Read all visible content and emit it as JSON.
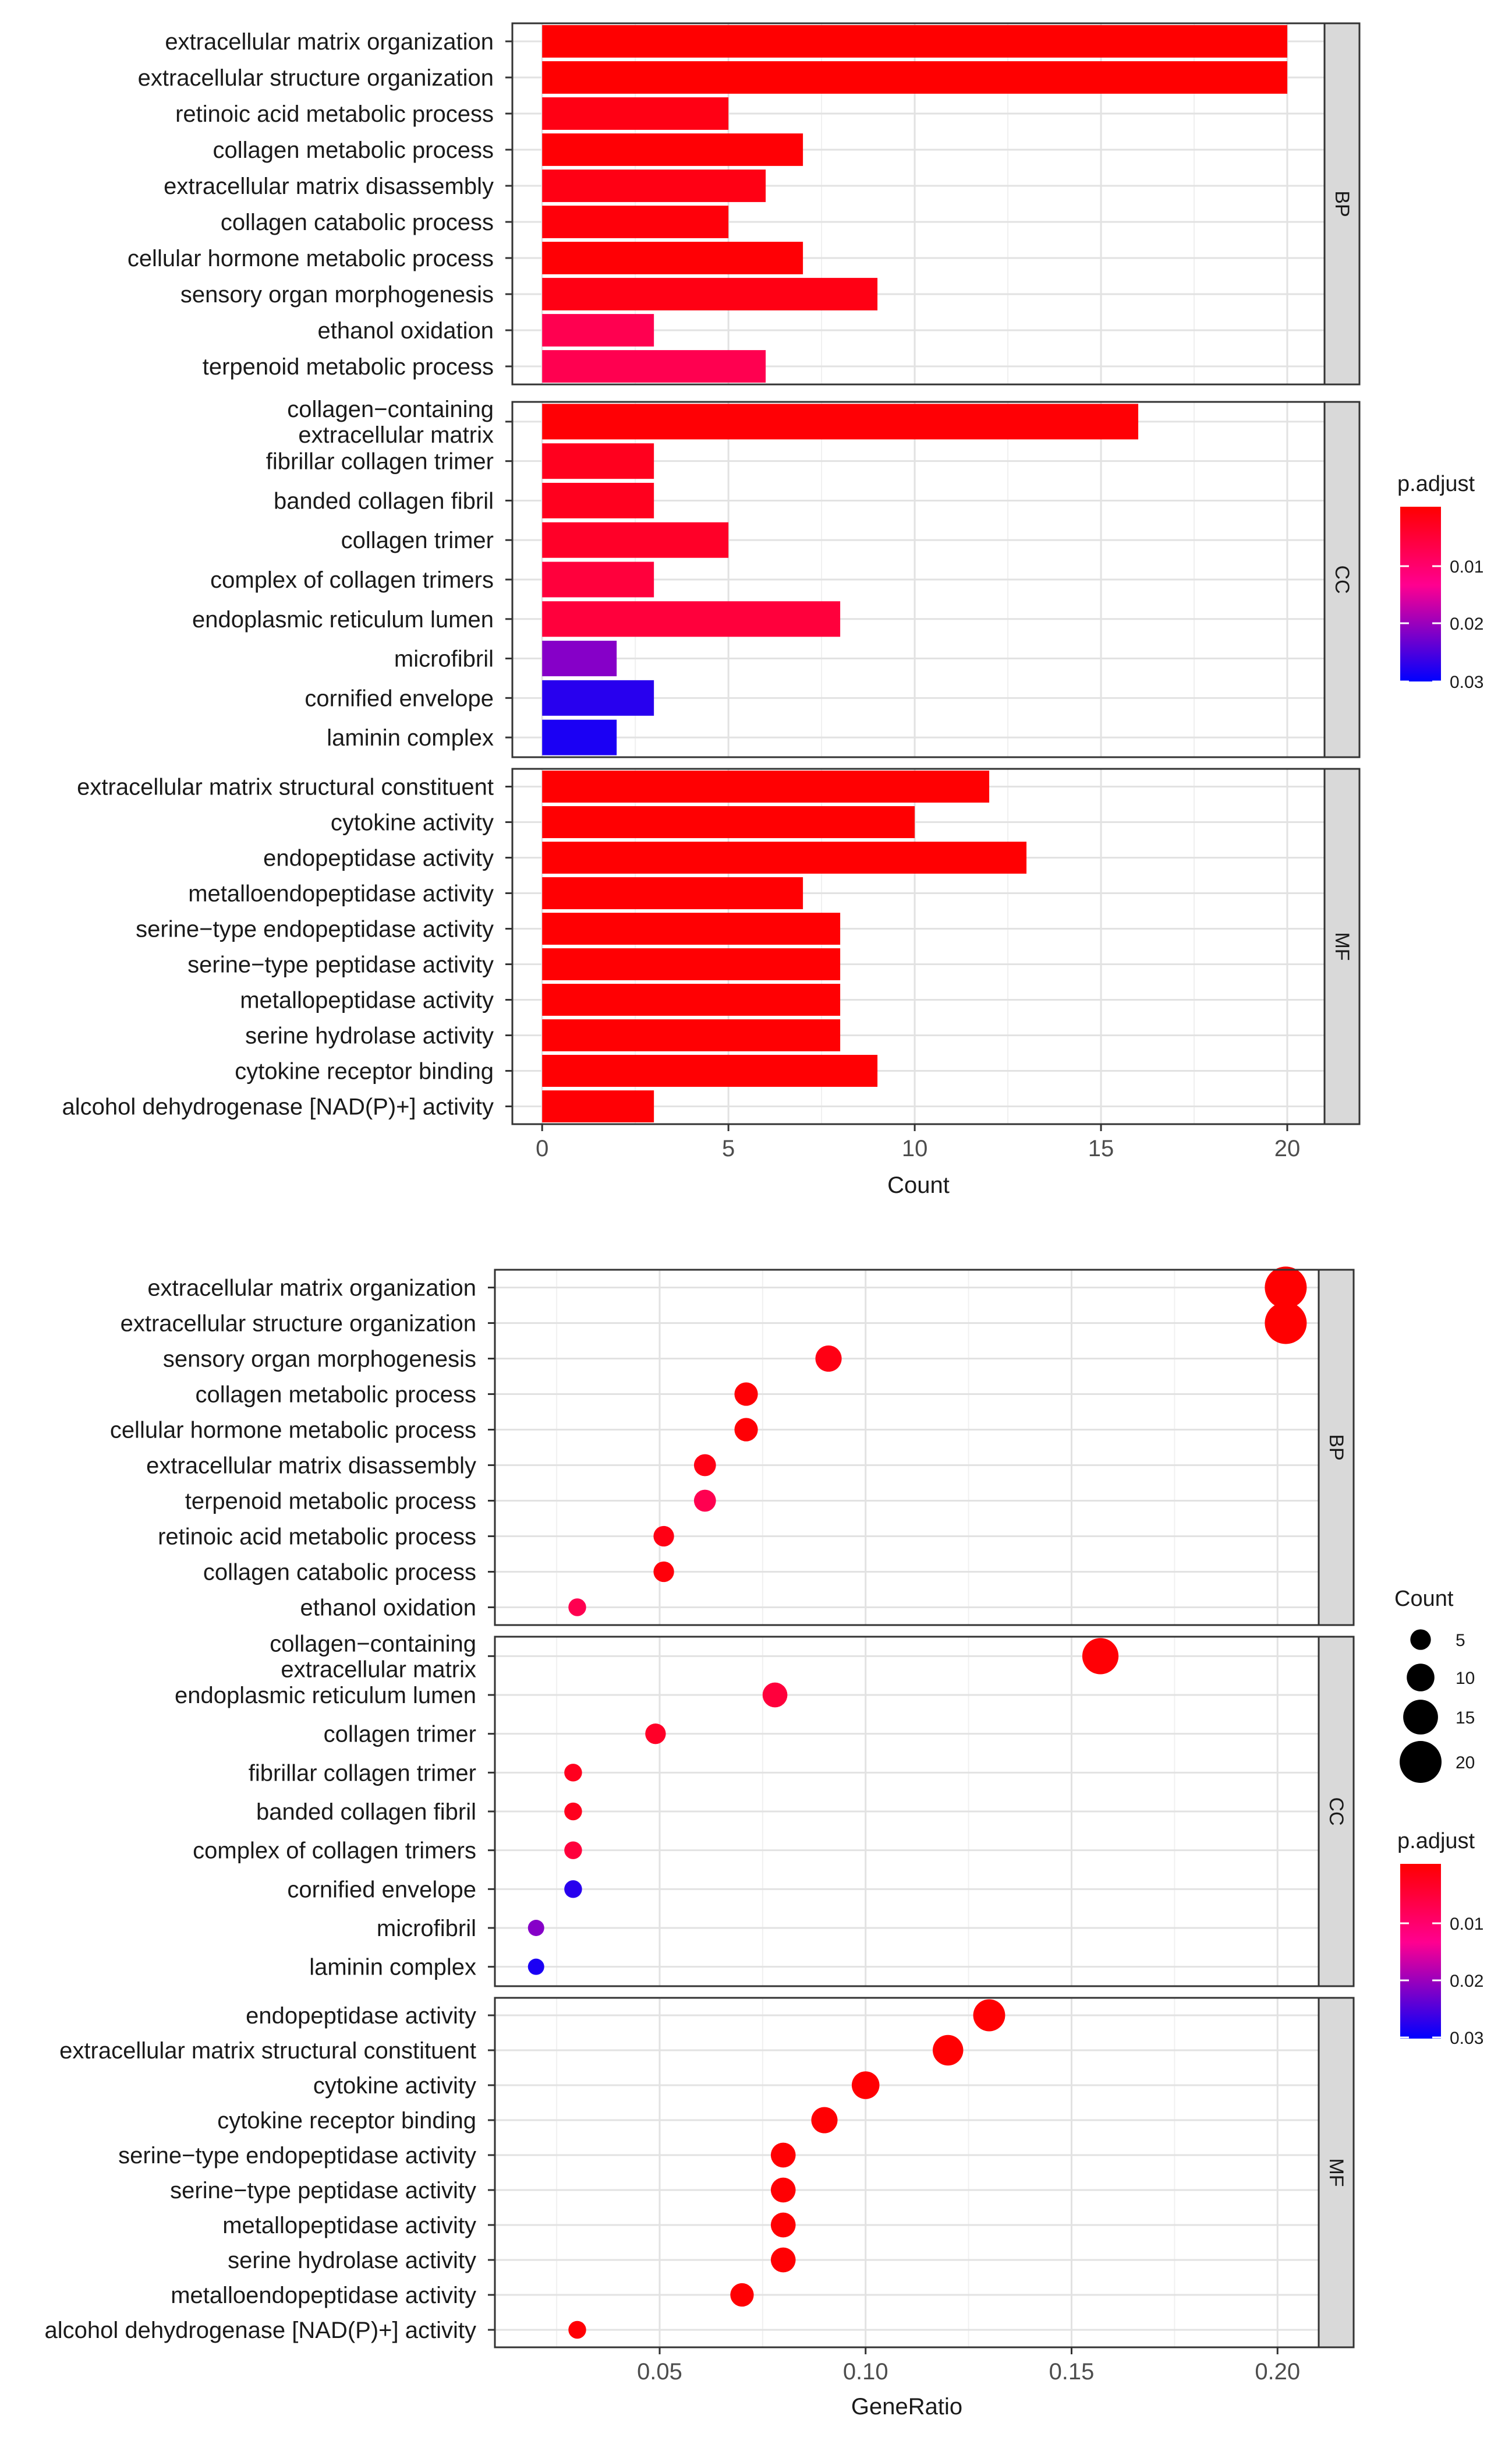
{
  "chart_data": [
    {
      "type": "bar",
      "orientation": "horizontal",
      "xlabel": "Count",
      "xlim": [
        -0.8,
        21.0
      ],
      "xticks": [
        0,
        5,
        10,
        15,
        20
      ],
      "grid": true,
      "facets": [
        {
          "name": "BP",
          "categories": [
            "extracellular matrix organization",
            "extracellular structure organization",
            "retinoic acid metabolic process",
            "collagen metabolic process",
            "extracellular matrix disassembly",
            "collagen catabolic process",
            "cellular hormone metabolic process",
            "sensory organ morphogenesis",
            "ethanol oxidation",
            "terpenoid metabolic process"
          ],
          "values": [
            20,
            20,
            5,
            7,
            6,
            5,
            7,
            9,
            3,
            6
          ],
          "p_adjust": [
            0.0001,
            0.0001,
            0.002,
            0.0005,
            0.002,
            0.001,
            0.0005,
            0.002,
            0.008,
            0.008
          ]
        },
        {
          "name": "CC",
          "categories": [
            "collagen−containing\nextracellular matrix",
            "fibrillar collagen trimer",
            "banded collagen fibril",
            "collagen trimer",
            "complex of collagen trimers",
            "endoplasmic reticulum lumen",
            "microfibril",
            "cornified envelope",
            "laminin complex"
          ],
          "values": [
            16,
            3,
            3,
            5,
            3,
            8,
            2,
            3,
            2
          ],
          "p_adjust": [
            0.0005,
            0.003,
            0.003,
            0.004,
            0.006,
            0.006,
            0.024,
            0.031,
            0.032
          ]
        },
        {
          "name": "MF",
          "categories": [
            "extracellular matrix structural constituent",
            "cytokine activity",
            "endopeptidase activity",
            "metalloendopeptidase activity",
            "serine−type endopeptidase activity",
            "serine−type peptidase activity",
            "metallopeptidase activity",
            "serine hydrolase activity",
            "cytokine receptor binding",
            "alcohol dehydrogenase [NAD(P)+] activity"
          ],
          "values": [
            12,
            10,
            13,
            7,
            8,
            8,
            8,
            8,
            9,
            3
          ],
          "p_adjust": [
            0.0002,
            0.0002,
            0.0002,
            0.0003,
            0.0003,
            0.0003,
            0.0003,
            0.0003,
            0.0003,
            0.0005
          ]
        }
      ],
      "legend": {
        "title": "p.adjust",
        "ticks": [
          "0.01",
          "0.02",
          "0.03"
        ],
        "placement": "right",
        "colors": {
          "low": "#ff0000",
          "mid": "#ff0090",
          "high": "#0000ff"
        }
      }
    },
    {
      "type": "scatter",
      "xlabel": "GeneRatio",
      "xlim": [
        0.01,
        0.21
      ],
      "xticks": [
        "0.05",
        "0.10",
        "0.15",
        "0.20"
      ],
      "grid": true,
      "facets": [
        {
          "name": "BP",
          "categories": [
            "extracellular matrix organization",
            "extracellular structure organization",
            "sensory organ morphogenesis",
            "collagen metabolic process",
            "cellular hormone metabolic process",
            "extracellular matrix disassembly",
            "terpenoid metabolic process",
            "retinoic acid metabolic process",
            "collagen catabolic process",
            "ethanol oxidation"
          ],
          "gene_ratio": [
            0.202,
            0.202,
            0.091,
            0.071,
            0.071,
            0.061,
            0.061,
            0.051,
            0.051,
            0.03
          ],
          "count": [
            20,
            20,
            9,
            7,
            7,
            6,
            6,
            5,
            5,
            3
          ],
          "p_adjust": [
            0.0001,
            0.0001,
            0.002,
            0.0005,
            0.0005,
            0.002,
            0.008,
            0.002,
            0.001,
            0.008
          ]
        },
        {
          "name": "CC",
          "categories": [
            "collagen−containing\nextracellular matrix",
            "endoplasmic reticulum lumen",
            "collagen trimer",
            "fibrillar collagen trimer",
            "banded collagen fibril",
            "complex of collagen trimers",
            "cornified envelope",
            "microfibril",
            "laminin complex"
          ],
          "gene_ratio": [
            0.157,
            0.078,
            0.049,
            0.029,
            0.029,
            0.029,
            0.029,
            0.02,
            0.02
          ],
          "count": [
            16,
            8,
            5,
            3,
            3,
            3,
            3,
            2,
            2
          ],
          "p_adjust": [
            0.0005,
            0.006,
            0.004,
            0.003,
            0.003,
            0.006,
            0.031,
            0.024,
            0.032
          ]
        },
        {
          "name": "MF",
          "categories": [
            "endopeptidase activity",
            "extracellular matrix structural constituent",
            "cytokine activity",
            "cytokine receptor binding",
            "serine−type endopeptidase activity",
            "serine−type peptidase activity",
            "metallopeptidase activity",
            "serine hydrolase activity",
            "metalloendopeptidase activity",
            "alcohol dehydrogenase [NAD(P)+] activity"
          ],
          "gene_ratio": [
            0.13,
            0.12,
            0.1,
            0.09,
            0.08,
            0.08,
            0.08,
            0.08,
            0.07,
            0.03
          ],
          "count": [
            13,
            12,
            10,
            9,
            8,
            8,
            8,
            8,
            7,
            3
          ],
          "p_adjust": [
            0.0002,
            0.0002,
            0.0002,
            0.0003,
            0.0003,
            0.0003,
            0.0003,
            0.0003,
            0.0003,
            0.0005
          ]
        }
      ],
      "size_legend": {
        "title": "Count",
        "values": [
          5,
          10,
          15,
          20
        ]
      },
      "color_legend": {
        "title": "p.adjust",
        "ticks": [
          "0.01",
          "0.02",
          "0.03"
        ],
        "colors": {
          "low": "#ff0000",
          "mid": "#ff0090",
          "high": "#0000ff"
        }
      }
    }
  ]
}
